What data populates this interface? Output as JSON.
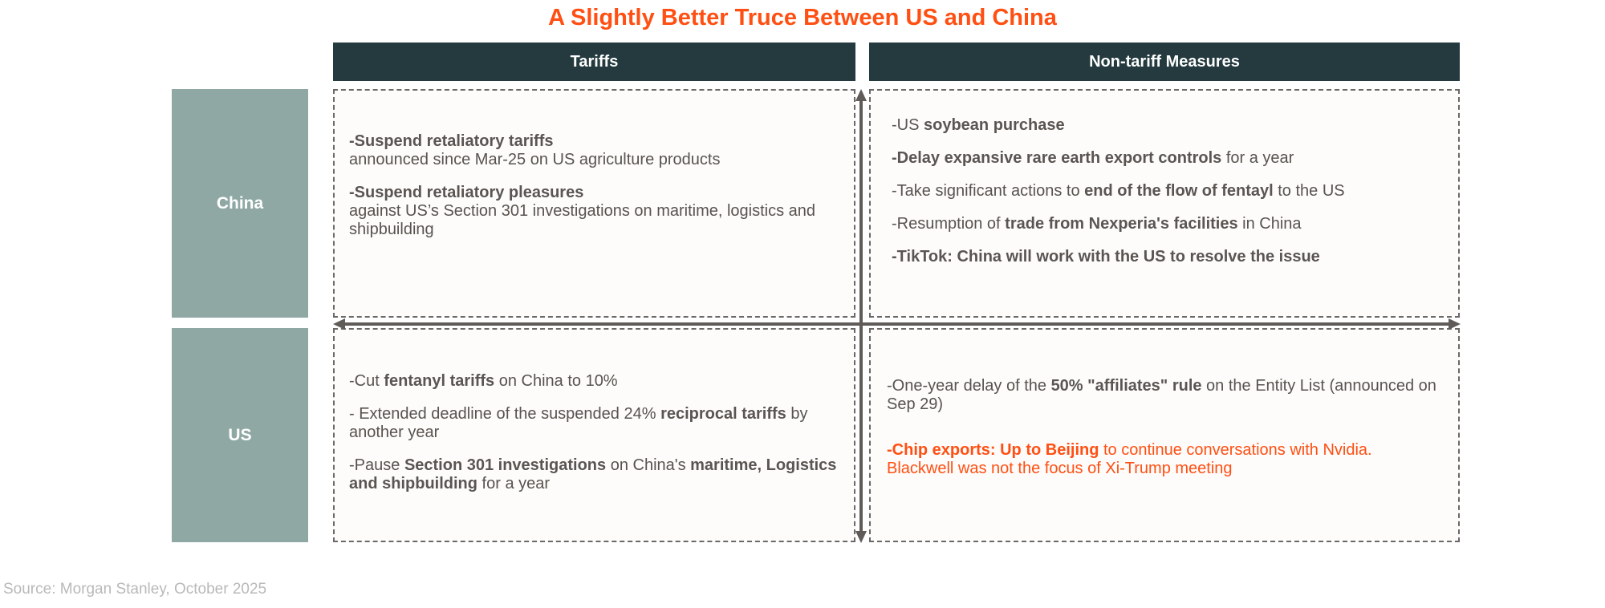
{
  "title": "A Slightly Better Truce Between US and China",
  "columns": {
    "tariffs": "Tariffs",
    "non_tariff": "Non-tariff Measures"
  },
  "rows": {
    "china": "China",
    "us": "US"
  },
  "cells": {
    "china_tariffs": [
      {
        "bold": "-Suspend retaliatory tariffs",
        "text": "announced since Mar-25 on US agriculture products"
      },
      {
        "bold": "-Suspend retaliatory pleasures",
        "text": "against US’s Section 301 investigations on maritime, logistics and shipbuilding"
      }
    ],
    "china_nontariff": [
      {
        "pre": "-US ",
        "bold": "soybean purchase",
        "post": ""
      },
      {
        "pre": "",
        "bold": "-Delay expansive rare earth export controls",
        "post": " for a year"
      },
      {
        "pre": "-Take significant actions to ",
        "bold": "end of the flow of fentayl",
        "post": " to the US"
      },
      {
        "pre": "-Resumption of ",
        "bold": "trade from Nexperia's facilities",
        "post": " in China"
      },
      {
        "pre": "",
        "bold": "-TikTok: China will work with the US to resolve the issue",
        "post": ""
      }
    ],
    "us_tariffs": [
      {
        "pre": "-Cut ",
        "bold": "fentanyl tariffs",
        "post": " on China to 10%"
      },
      {
        "pre": "- Extended deadline of the suspended 24% ",
        "bold": "reciprocal tariffs",
        "post": " by another year"
      },
      {
        "pre": "-Pause ",
        "bold": "Section 301 investigations",
        "mid": " on China's ",
        "bold2": "maritime, Logistics and shipbuilding",
        "post": " for a year"
      }
    ],
    "us_nontariff": {
      "line1_pre": "-One-year delay of the ",
      "line1_bold": "50% \"affiliates\" rule",
      "line1_post": " on the Entity List (announced on Sep 29)",
      "line2_bold": "-Chip exports: Up to Beijing",
      "line2_post": " to continue conversations with Nvidia. Blackwell was not the focus of Xi-Trump meeting"
    }
  },
  "source": "Source: Morgan Stanley, October 2025",
  "colors": {
    "title": "#ff4f12",
    "header": "#243a3e",
    "row_label": "#8fa8a3",
    "highlight": "#ff4f12",
    "axis": "#5f5b59"
  }
}
